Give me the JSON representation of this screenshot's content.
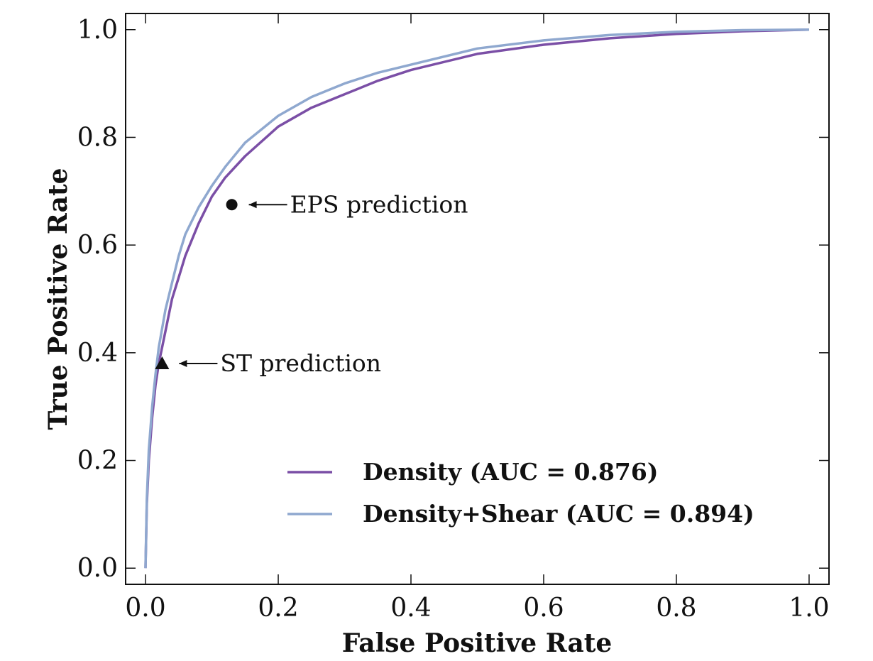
{
  "chart_data": {
    "type": "line",
    "xlabel": "False Positive Rate",
    "ylabel": "True Positive Rate",
    "xlim": [
      -0.03,
      1.03
    ],
    "ylim": [
      -0.03,
      1.03
    ],
    "xticks": [
      0.0,
      0.2,
      0.4,
      0.6,
      0.8,
      1.0
    ],
    "yticks": [
      0.0,
      0.2,
      0.4,
      0.6,
      0.8,
      1.0
    ],
    "tick_labels": [
      "0.0",
      "0.2",
      "0.4",
      "0.6",
      "0.8",
      "1.0"
    ],
    "grid": false,
    "legend_placement": "lower-right",
    "series": [
      {
        "name": "Density (AUC = 0.876)",
        "color": "#7b4fa6",
        "x": [
          0.0,
          0.002,
          0.005,
          0.01,
          0.015,
          0.02,
          0.03,
          0.04,
          0.05,
          0.06,
          0.08,
          0.1,
          0.12,
          0.15,
          0.2,
          0.25,
          0.3,
          0.35,
          0.4,
          0.5,
          0.6,
          0.7,
          0.8,
          0.9,
          1.0
        ],
        "y": [
          0.0,
          0.12,
          0.2,
          0.28,
          0.34,
          0.38,
          0.44,
          0.5,
          0.54,
          0.58,
          0.64,
          0.69,
          0.725,
          0.765,
          0.82,
          0.855,
          0.88,
          0.905,
          0.925,
          0.955,
          0.972,
          0.984,
          0.992,
          0.997,
          1.0
        ]
      },
      {
        "name": "Density+Shear (AUC = 0.894)",
        "color": "#8fa8cf",
        "x": [
          0.0,
          0.002,
          0.005,
          0.01,
          0.015,
          0.02,
          0.03,
          0.04,
          0.05,
          0.06,
          0.08,
          0.1,
          0.12,
          0.15,
          0.2,
          0.25,
          0.3,
          0.35,
          0.4,
          0.5,
          0.6,
          0.7,
          0.8,
          0.9,
          1.0
        ],
        "y": [
          0.0,
          0.13,
          0.22,
          0.3,
          0.36,
          0.41,
          0.48,
          0.53,
          0.58,
          0.62,
          0.67,
          0.71,
          0.745,
          0.79,
          0.84,
          0.875,
          0.9,
          0.92,
          0.935,
          0.965,
          0.98,
          0.99,
          0.996,
          0.999,
          1.0
        ]
      }
    ],
    "points": [
      {
        "marker": "circle",
        "x": 0.13,
        "y": 0.675,
        "label": "EPS prediction"
      },
      {
        "marker": "triangle",
        "x": 0.025,
        "y": 0.38,
        "label": "ST prediction"
      }
    ]
  }
}
